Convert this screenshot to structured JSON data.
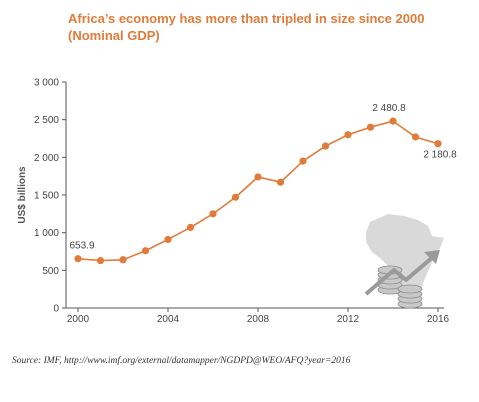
{
  "title_line1": "Africa’s economy has more than tripled in size since 2000",
  "title_line2": "(Nominal GDP)",
  "source": "Source: IMF, http://www.imf.org/external/datamapper/NGDPD@WEO/AFQ?year=2016",
  "colors": {
    "accent": "#e07b39",
    "axis": "#555555",
    "map": "#d9d9d9",
    "coins": "#c8c8c8"
  },
  "icons": [
    "africa-map-icon",
    "coin-stack-icon",
    "growth-arrow-icon"
  ],
  "chart_data": {
    "type": "line",
    "title": "Africa’s economy has more than tripled in size since 2000 (Nominal GDP)",
    "xlabel": "",
    "ylabel": "US$ billions",
    "x": [
      2000,
      2001,
      2002,
      2003,
      2004,
      2005,
      2006,
      2007,
      2008,
      2009,
      2010,
      2011,
      2012,
      2013,
      2014,
      2015,
      2016
    ],
    "values": [
      653.9,
      630,
      640,
      760,
      910,
      1070,
      1250,
      1470,
      1740,
      1670,
      1950,
      2150,
      2300,
      2400,
      2480.8,
      2270,
      2180.8
    ],
    "xticks": [
      "2000",
      "2004",
      "2008",
      "2012",
      "2016"
    ],
    "yticks": [
      "0",
      "500",
      "1 000",
      "1 500",
      "2 000",
      "2 500",
      "3 000"
    ],
    "ylim": [
      0,
      3000
    ],
    "xlim": [
      2000,
      2016
    ],
    "grid": false,
    "annotations": [
      {
        "x": 2000,
        "y": 653.9,
        "label": "653.9"
      },
      {
        "x": 2014,
        "y": 2480.8,
        "label": "2 480.8"
      },
      {
        "x": 2016,
        "y": 2180.8,
        "label": "2 180.8"
      }
    ]
  }
}
